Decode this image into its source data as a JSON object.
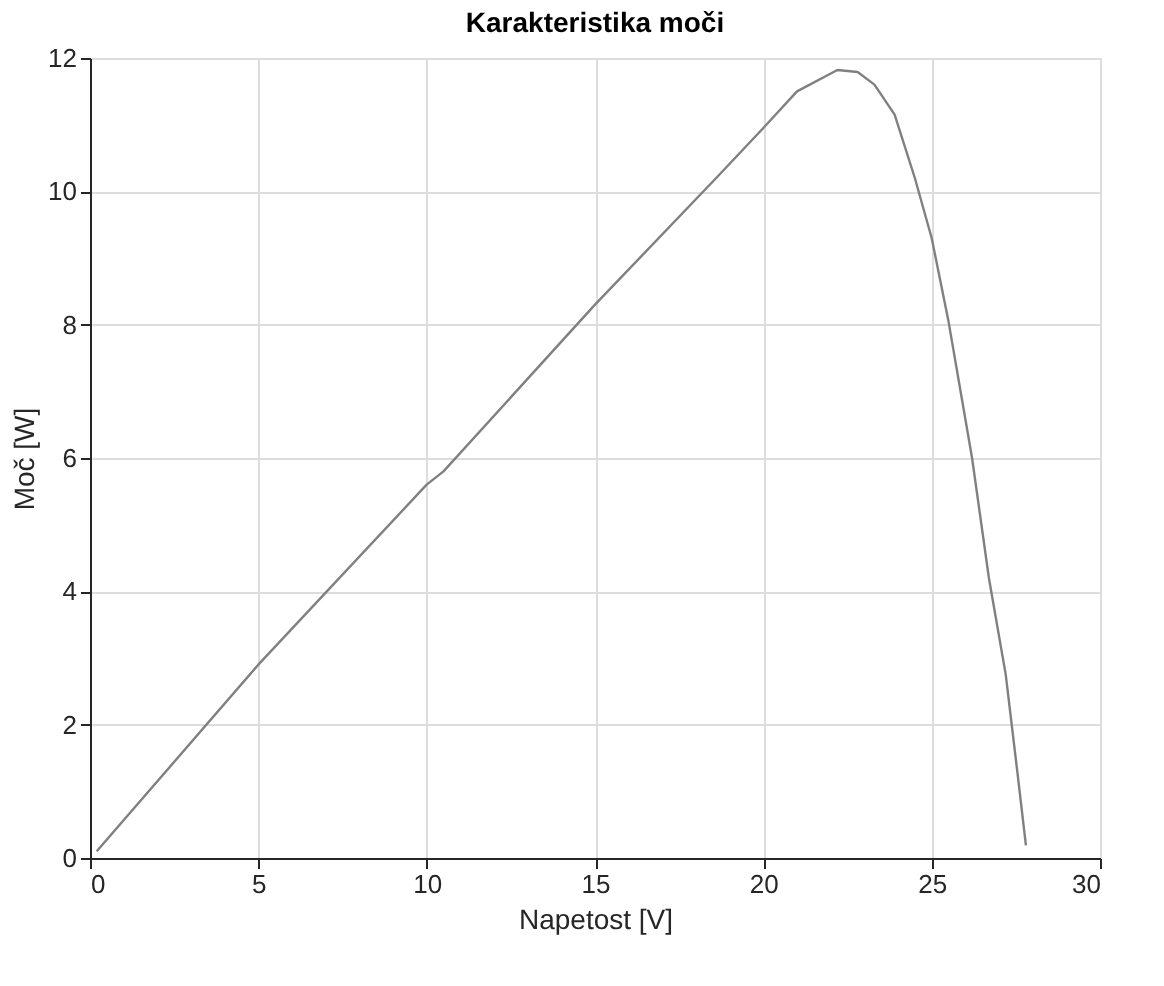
{
  "chart_data": {
    "type": "line",
    "title": "Karakteristika moči",
    "xlabel": "Napetost [V]",
    "ylabel": "Moč [W]",
    "x": [
      0.2,
      5,
      10,
      10.5,
      15,
      18.6,
      20,
      21,
      22.2,
      22.8,
      23.3,
      23.9,
      24.5,
      25,
      25.5,
      26.2,
      26.7,
      27.2,
      27.55,
      27.8
    ],
    "values": [
      0.1,
      2.9,
      5.6,
      5.8,
      8.3,
      10.2,
      10.95,
      11.5,
      11.82,
      11.79,
      11.6,
      11.15,
      10.2,
      9.3,
      8.05,
      6.0,
      4.2,
      2.75,
      1.27,
      0.19
    ],
    "color": "#808080",
    "xlim": [
      0,
      30
    ],
    "xticks": [
      0,
      5,
      10,
      15,
      20,
      25,
      30
    ],
    "ylim": [
      0,
      12
    ],
    "yticks": [
      0,
      2,
      4,
      6,
      8,
      10,
      12
    ],
    "grid": true,
    "line_style": "solid",
    "marker": "none"
  }
}
